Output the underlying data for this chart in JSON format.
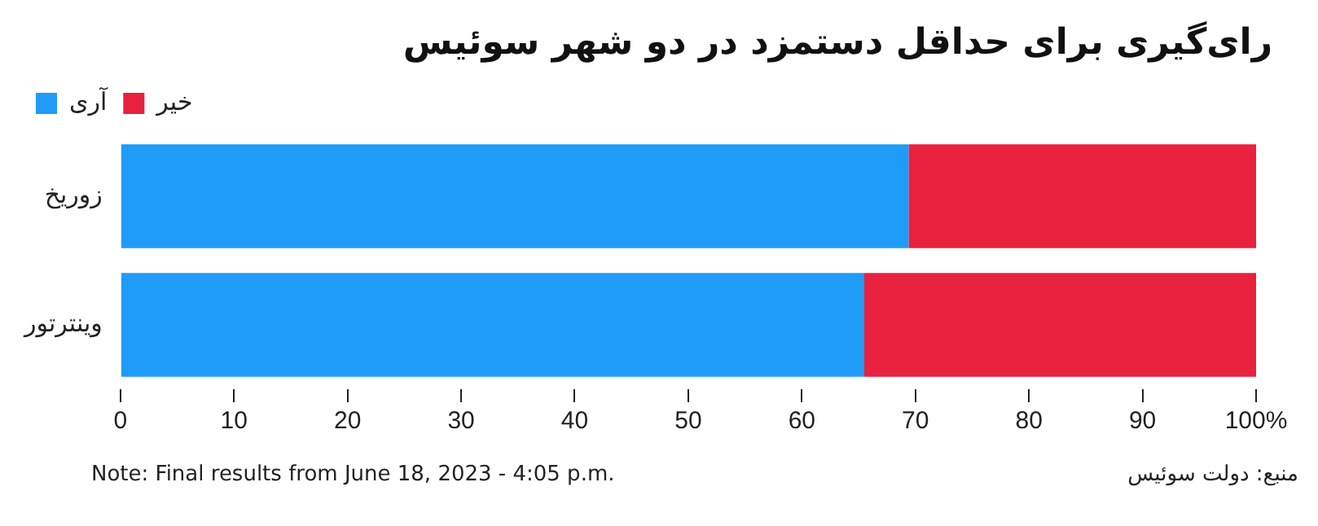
{
  "chart_data": {
    "type": "bar",
    "orientation": "horizontal",
    "stacked": true,
    "title": "رای‌گیری برای حداقل دستمزد در دو شهر سوئیس",
    "categories": [
      "زوریخ",
      "وینترتور"
    ],
    "series": [
      {
        "name": "آری",
        "color": "#1e9cf7",
        "values": [
          69.4,
          65.5
        ]
      },
      {
        "name": "خیر",
        "color": "#e8213f",
        "values": [
          30.6,
          34.5
        ]
      }
    ],
    "xlim": [
      0,
      100
    ],
    "xticks": [
      0,
      10,
      20,
      30,
      40,
      50,
      60,
      70,
      80,
      90,
      {
        "value": 100,
        "label": "100%"
      }
    ],
    "grid": false,
    "legend": "top left",
    "annotations": [
      "Note: Final results from June 18, 2023 - 4:05 p.m.",
      "منبع: دولت سوئیس"
    ]
  }
}
